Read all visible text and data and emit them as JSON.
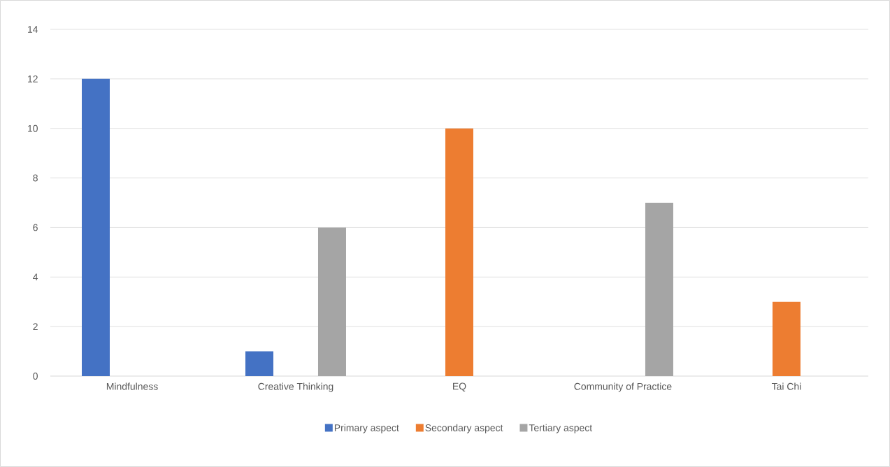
{
  "chart_data": {
    "type": "bar",
    "categories": [
      "Mindfulness",
      "Creative Thinking",
      "EQ",
      "Community of Practice",
      "Tai Chi"
    ],
    "series": [
      {
        "name": "Primary aspect",
        "color": "#4472c4",
        "values": [
          12,
          1,
          null,
          null,
          null
        ]
      },
      {
        "name": "Secondary aspect",
        "color": "#ed7d31",
        "values": [
          null,
          null,
          10,
          null,
          3
        ]
      },
      {
        "name": "Tertiary aspect",
        "color": "#a5a5a5",
        "values": [
          null,
          6,
          null,
          7,
          null
        ]
      }
    ],
    "ylim": [
      0,
      14
    ],
    "yticks": [
      0,
      2,
      4,
      6,
      8,
      10,
      12,
      14
    ],
    "grid": "y",
    "legend": "bottom"
  }
}
